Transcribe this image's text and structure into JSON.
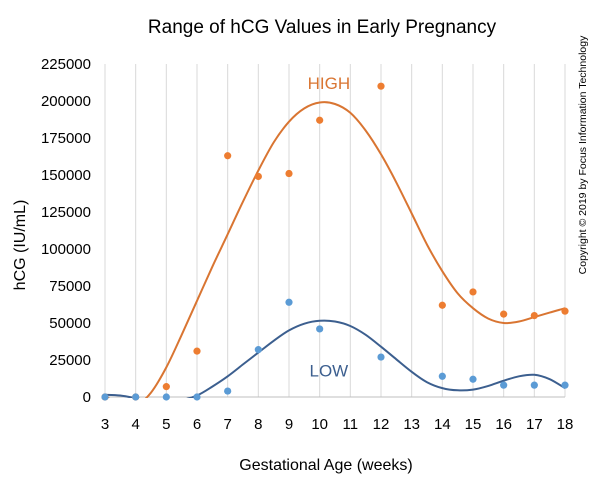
{
  "chart_data": {
    "type": "scatter",
    "title": "Range of hCG Values in Early Pregnancy",
    "xlabel": "Gestational Age (weeks)",
    "ylabel": "hCG (IU/mL)",
    "xlim": [
      3,
      18
    ],
    "ylim": [
      0,
      225000
    ],
    "x_ticks": [
      3,
      4,
      5,
      6,
      7,
      8,
      9,
      10,
      11,
      12,
      13,
      14,
      15,
      16,
      17,
      18
    ],
    "y_ticks": [
      0,
      25000,
      50000,
      75000,
      100000,
      125000,
      150000,
      175000,
      200000,
      225000
    ],
    "grid": "vertical",
    "copyright": "Copyright © 2019 by Focus Information Technology",
    "series": [
      {
        "name": "HIGH",
        "color": "#ED7D31",
        "trendline_color": "#D97532",
        "points": [
          [
            3,
            0
          ],
          [
            4,
            0
          ],
          [
            5,
            7000
          ],
          [
            6,
            31000
          ],
          [
            7,
            163000
          ],
          [
            8,
            149000
          ],
          [
            9,
            151000
          ],
          [
            10,
            187000
          ],
          [
            12,
            210000
          ],
          [
            14,
            62000
          ],
          [
            15,
            71000
          ],
          [
            16,
            56000
          ],
          [
            17,
            55000
          ],
          [
            18,
            58000
          ]
        ],
        "trendline": [
          [
            3,
            1000
          ],
          [
            3.5,
            -6000
          ],
          [
            4,
            -6000
          ],
          [
            4.5,
            3000
          ],
          [
            5,
            20000
          ],
          [
            5.5,
            42000
          ],
          [
            6,
            65000
          ],
          [
            6.5,
            88000
          ],
          [
            7,
            110000
          ],
          [
            7.5,
            132000
          ],
          [
            8,
            153000
          ],
          [
            8.5,
            172000
          ],
          [
            9,
            186000
          ],
          [
            9.5,
            195000
          ],
          [
            10,
            199000
          ],
          [
            10.5,
            198000
          ],
          [
            11,
            192000
          ],
          [
            11.5,
            180000
          ],
          [
            12,
            164000
          ],
          [
            12.5,
            145000
          ],
          [
            13,
            124000
          ],
          [
            13.5,
            103000
          ],
          [
            14,
            85000
          ],
          [
            14.5,
            70000
          ],
          [
            15,
            60000
          ],
          [
            15.5,
            53000
          ],
          [
            16,
            50000
          ],
          [
            16.5,
            51000
          ],
          [
            17,
            54000
          ],
          [
            17.5,
            57000
          ],
          [
            18,
            60000
          ]
        ]
      },
      {
        "name": "LOW",
        "color": "#5B9BD5",
        "trendline_color": "#3C5F8F",
        "points": [
          [
            3,
            0
          ],
          [
            4,
            0
          ],
          [
            5,
            0
          ],
          [
            6,
            0
          ],
          [
            7,
            4000
          ],
          [
            8,
            32000
          ],
          [
            9,
            64000
          ],
          [
            10,
            46000
          ],
          [
            12,
            27000
          ],
          [
            14,
            14000
          ],
          [
            15,
            12000
          ],
          [
            16,
            8000
          ],
          [
            17,
            8000
          ],
          [
            18,
            8000
          ]
        ],
        "trendline": [
          [
            3,
            1500
          ],
          [
            3.5,
            1000
          ],
          [
            4,
            -800
          ],
          [
            4.5,
            -2500
          ],
          [
            5,
            -3000
          ],
          [
            5.5,
            -2000
          ],
          [
            6,
            1000
          ],
          [
            6.5,
            7000
          ],
          [
            7,
            14000
          ],
          [
            7.5,
            22000
          ],
          [
            8,
            30000
          ],
          [
            8.5,
            38000
          ],
          [
            9,
            45000
          ],
          [
            9.5,
            49500
          ],
          [
            10,
            51500
          ],
          [
            10.5,
            51000
          ],
          [
            11,
            48000
          ],
          [
            11.5,
            42000
          ],
          [
            12,
            34000
          ],
          [
            12.5,
            25500
          ],
          [
            13,
            17000
          ],
          [
            13.5,
            10000
          ],
          [
            14,
            6000
          ],
          [
            14.5,
            4500
          ],
          [
            15,
            5000
          ],
          [
            15.5,
            7500
          ],
          [
            16,
            11000
          ],
          [
            16.5,
            14000
          ],
          [
            17,
            15000
          ],
          [
            17.5,
            12000
          ],
          [
            18,
            6000
          ]
        ]
      }
    ]
  }
}
